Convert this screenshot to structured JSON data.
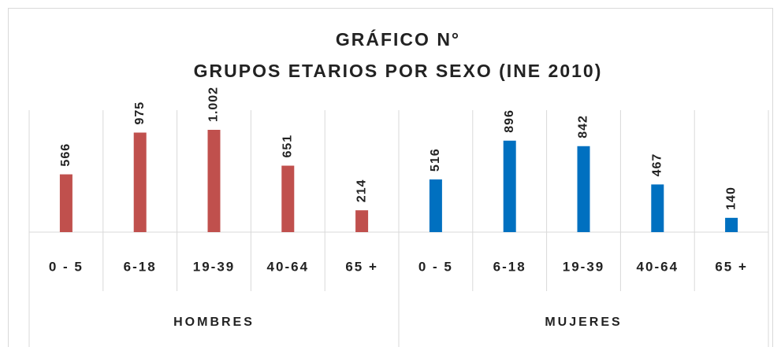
{
  "chart_data": {
    "type": "bar",
    "title": "GRÁFICO N°",
    "subtitle": "GRUPOS ETARIOS POR SEXO (INE 2010)",
    "groups": [
      {
        "name": "HOMBRES",
        "color": "#c0504d",
        "categories": [
          "0 - 5",
          "6-18",
          "19-39",
          "40-64",
          "65 +"
        ],
        "values": [
          566,
          975,
          1002,
          651,
          214
        ],
        "value_labels": [
          "566",
          "975",
          "1.002",
          "651",
          "214"
        ]
      },
      {
        "name": "MUJERES",
        "color": "#0070c0",
        "categories": [
          "0 - 5",
          "6-18",
          "19-39",
          "40-64",
          "65 +"
        ],
        "values": [
          516,
          896,
          842,
          467,
          140
        ]
      }
    ]
  }
}
